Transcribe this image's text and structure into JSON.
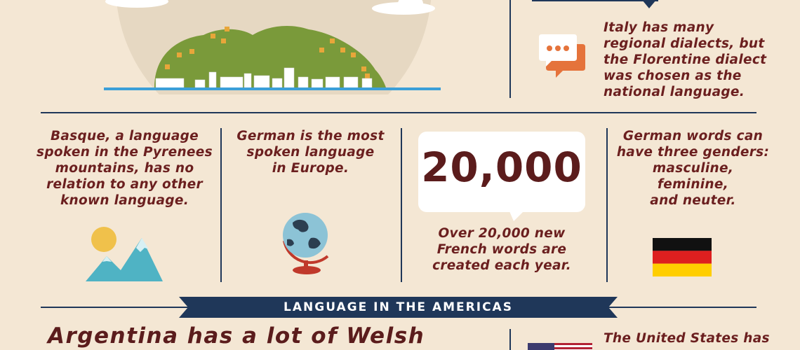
{
  "facts": {
    "italy": [
      "Italy has many",
      "regional dialects, but",
      "the Florentine dialect",
      "was chosen as the",
      "national language."
    ],
    "basque": [
      "Basque, a language",
      "spoken in the Pyrenees",
      "mountains, has no",
      "relation to any other",
      "known language."
    ],
    "german_spoken": [
      "German is the most",
      "spoken language",
      "in Europe."
    ],
    "french": [
      "Over 20,000 new",
      "French words are",
      "created each year."
    ],
    "german_genders": [
      "German words can",
      "have three genders:",
      "masculine,",
      "feminine,",
      "and neuter."
    ],
    "usa": [
      "The United States has"
    ]
  },
  "stat": {
    "value": "20,000"
  },
  "banner": {
    "title": "LANGUAGE IN THE AMERICAS"
  },
  "headline": {
    "text": "Argentina has a lot of Welsh"
  },
  "colors": {
    "background": "#f4e7d4",
    "text": "#6b1f1f",
    "navy": "#1f3759",
    "chat_orange": "#e5733b",
    "hill_green": "#7a9a3a",
    "sun_yellow": "#f0c14b",
    "mountain_teal": "#4fb3c4"
  }
}
